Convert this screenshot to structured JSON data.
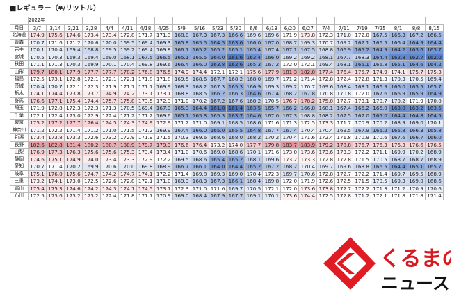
{
  "caption": "■レギュラー（¥/リットル）",
  "year": "2022年",
  "corner": "月日",
  "dates": [
    "3/7",
    "3/14",
    "3/21",
    "3/28",
    "4/4",
    "4/11",
    "4/18",
    "4/25",
    "5/9",
    "5/16",
    "5/23",
    "5/30",
    "6/6",
    "6/13",
    "6/20",
    "6/27",
    "7/4",
    "7/11",
    "7/19",
    "7/25",
    "8/1",
    "8/8",
    "8/15"
  ],
  "colors": {
    "low": "#4a76c6",
    "high": "#e98f97",
    "white": "#ffffff"
  },
  "rows": [
    {
      "p": "北海道",
      "v": [
        174.9,
        175.6,
        174.6,
        173.4,
        173.4,
        172.8,
        171.7,
        171.3,
        168.0,
        167.3,
        167.3,
        166.6,
        169.6,
        169.6,
        171.9,
        173.8,
        172.3,
        171.0,
        172.0,
        167.5,
        166.3,
        167.2,
        166.5
      ]
    },
    {
      "p": "青森",
      "v": [
        170.7,
        171.6,
        171.2,
        170.6,
        170.0,
        169.5,
        169.4,
        169.3,
        165.8,
        165.5,
        164.5,
        163.6,
        166.0,
        167.0,
        168.7,
        169.3,
        170.7,
        169.2,
        167.1,
        166.5,
        166.4,
        164.9,
        164.4
      ]
    },
    {
      "p": "岩手",
      "v": [
        170.1,
        170.4,
        169.4,
        168.8,
        169.5,
        169.2,
        169.4,
        169.8,
        166.1,
        165.2,
        165.2,
        165.1,
        165.4,
        167.4,
        167.1,
        167.5,
        168.8,
        166.9,
        165.2,
        164.9,
        164.2,
        163.6,
        163.7
      ]
    },
    {
      "p": "宮城",
      "v": [
        170.5,
        170.3,
        169.3,
        169.4,
        169.0,
        168.1,
        167.5,
        166.5,
        165.1,
        165.5,
        164.0,
        161.6,
        163.4,
        166.0,
        169.2,
        169.2,
        168.1,
        167.7,
        168.3,
        164.4,
        162.8,
        162.7,
        162.0
      ]
    },
    {
      "p": "秋田",
      "v": [
        171.1,
        171.3,
        170.3,
        169.9,
        170.1,
        170.4,
        169.8,
        169.6,
        166.4,
        166.0,
        163.8,
        162.6,
        165.3,
        167.2,
        172.0,
        172.1,
        169.4,
        168.1,
        165.1,
        166.8,
        165.1,
        164.6,
        164.2
      ]
    },
    {
      "p": "山形",
      "v": [
        179.7,
        180.1,
        177.9,
        177.7,
        177.7,
        178.2,
        176.8,
        176.5,
        174.9,
        174.4,
        172.1,
        172.1,
        175.6,
        177.9,
        181.3,
        182.0,
        177.4,
        176.4,
        175.7,
        174.9,
        174.1,
        175.7,
        175.3
      ]
    },
    {
      "p": "福島",
      "v": [
        172.5,
        173.1,
        172.8,
        172.1,
        172.1,
        172.1,
        171.8,
        171.8,
        169.5,
        168.6,
        167.7,
        168.2,
        168.0,
        169.7,
        171.2,
        171.4,
        172.8,
        172.4,
        172.8,
        171.3,
        170.3,
        170.5,
        169.4
      ]
    },
    {
      "p": "茨城",
      "v": [
        170.4,
        170.7,
        172.1,
        172.3,
        171.9,
        171.7,
        171.1,
        169.9,
        168.3,
        168.2,
        167.3,
        165.3,
        166.9,
        169.3,
        169.2,
        170.7,
        169.6,
        168.4,
        168.1,
        166.9,
        166.0,
        165.5,
        165.7
      ]
    },
    {
      "p": "栃木",
      "v": [
        174.1,
        174.4,
        173.8,
        173.7,
        174.9,
        174.2,
        173.1,
        173.1,
        168.8,
        168.5,
        166.2,
        166.3,
        164.6,
        167.4,
        168.2,
        167.8,
        170.8,
        170.8,
        172.0,
        167.6,
        166.9,
        165.9,
        164.9
      ]
    },
    {
      "p": "群馬",
      "v": [
        176.6,
        177.1,
        175.4,
        174.4,
        175.7,
        175.8,
        173.5,
        172.3,
        171.0,
        170.2,
        167.2,
        167.6,
        168.2,
        170.5,
        176.7,
        178.2,
        175.0,
        172.7,
        173.1,
        170.7,
        170.2,
        171.9,
        170.0
      ]
    },
    {
      "p": "埼玉",
      "v": [
        171.9,
        172.8,
        172.3,
        172.3,
        171.3,
        170.5,
        169.4,
        167.3,
        165.3,
        164.4,
        161.8,
        161.4,
        163.5,
        165.7,
        166.2,
        166.8,
        168.1,
        167.4,
        166.2,
        166.0,
        163.0,
        163.2,
        163.5
      ]
    },
    {
      "p": "千葉",
      "v": [
        172.1,
        172.4,
        173.0,
        172.9,
        172.4,
        171.2,
        171.2,
        169.6,
        165.1,
        165.3,
        165.3,
        163.7,
        164.6,
        167.0,
        167.3,
        168.8,
        168.2,
        167.5,
        167.0,
        165.0,
        164.4,
        164.8,
        164.5
      ]
    },
    {
      "p": "東京",
      "v": [
        175.2,
        177.2,
        177.7,
        176.4,
        174.5,
        174.3,
        174.9,
        172.9,
        171.2,
        171.0,
        169.1,
        168.5,
        168.6,
        171.6,
        171.3,
        172.5,
        173.3,
        171.7,
        170.9,
        170.2,
        168.9,
        169.0,
        170.1
      ]
    },
    {
      "p": "神奈川",
      "v": [
        171.2,
        172.2,
        171.4,
        171.2,
        171.0,
        171.5,
        171.2,
        169.9,
        167.4,
        166.0,
        165.0,
        165.5,
        164.8,
        167.7,
        167.4,
        170.4,
        170.4,
        169.5,
        167.9,
        166.2,
        165.8,
        166.3,
        165.8
      ]
    },
    {
      "p": "新潟",
      "v": [
        173.4,
        173.8,
        173.3,
        172.6,
        173.2,
        172.9,
        171.9,
        171.5,
        170.3,
        169.6,
        168.6,
        168.0,
        168.2,
        170.2,
        170.4,
        171.6,
        172.4,
        171.8,
        170.9,
        170.6,
        167.6,
        166.7,
        166.0
      ]
    },
    {
      "p": "長野",
      "v": [
        182.6,
        182.8,
        181.4,
        180.2,
        180.7,
        180.9,
        179.7,
        179.3,
        176.6,
        176.4,
        173.2,
        174.0,
        177.7,
        179.8,
        183.7,
        183.9,
        179.2,
        178.8,
        176.7,
        176.3,
        176.3,
        176.6,
        176.5
      ]
    },
    {
      "p": "山梨",
      "v": [
        176.9,
        177.3,
        176.3,
        175.6,
        175.6,
        175.3,
        173.4,
        173.4,
        171.0,
        170.6,
        169.0,
        168.6,
        170.1,
        171.6,
        173.0,
        173.6,
        173.6,
        173.3,
        172.2,
        171.1,
        169.9,
        170.2,
        168.9
      ]
    },
    {
      "p": "静岡",
      "v": [
        174.6,
        175.1,
        174.9,
        174.0,
        173.4,
        173.3,
        172.9,
        172.2,
        169.5,
        168.6,
        165.4,
        165.2,
        168.1,
        169.6,
        173.2,
        173.3,
        172.8,
        172.8,
        171.5,
        170.5,
        168.7,
        168.7,
        168.9
      ]
    },
    {
      "p": "愛知",
      "v": [
        170.7,
        171.4,
        170.2,
        169.9,
        170.6,
        170.0,
        169.8,
        168.9,
        166.7,
        166.1,
        164.0,
        164.4,
        165.2,
        167.2,
        168.2,
        170.4,
        169.7,
        169.6,
        168.8,
        166.5,
        164.4,
        165.1,
        165.7
      ]
    },
    {
      "p": "岐阜",
      "v": [
        175.1,
        176.0,
        175.6,
        174.7,
        174.2,
        174.7,
        174.1,
        172.2,
        171.4,
        169.8,
        169.3,
        169.0,
        170.4,
        172.3,
        169.7,
        170.6,
        172.8,
        172.7,
        172.2,
        171.4,
        169.7,
        169.5,
        168.9
      ]
    },
    {
      "p": "三重",
      "v": [
        173.2,
        174.1,
        173.0,
        172.5,
        172.6,
        172.8,
        172.1,
        171.0,
        169.3,
        168.3,
        167.3,
        166.1,
        168.4,
        169.8,
        172.0,
        171.9,
        172.6,
        172.5,
        171.5,
        170.5,
        169.3,
        169.0,
        168.6
      ]
    },
    {
      "p": "富山",
      "v": [
        175.4,
        175.3,
        174.6,
        174.2,
        174.3,
        174.1,
        174.5,
        173.1,
        172.3,
        171.0,
        171.6,
        169.7,
        170.5,
        172.1,
        172.0,
        173.6,
        173.8,
        172.7,
        172.2,
        171.3,
        171.2,
        170.9,
        170.6
      ]
    },
    {
      "p": "石川",
      "v": [
        172.5,
        173.6,
        173.2,
        173.2,
        172.4,
        171.8,
        171.7,
        170.9,
        169.0,
        168.4,
        167.9,
        167.7,
        169.1,
        170.1,
        173.6,
        174.4,
        172.5,
        172.8,
        171.2,
        172.1,
        171.8,
        171.8,
        171.4
      ]
    }
  ],
  "logo": {
    "jp": "くるまの",
    "kana": "ニュース"
  }
}
